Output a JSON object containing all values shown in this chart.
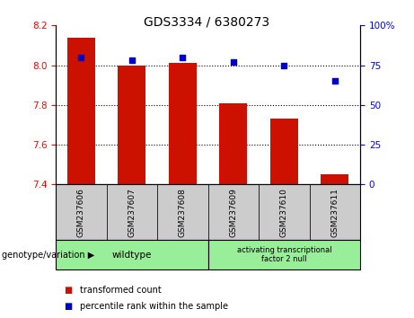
{
  "title": "GDS3334 / 6380273",
  "samples": [
    "GSM237606",
    "GSM237607",
    "GSM237608",
    "GSM237609",
    "GSM237610",
    "GSM237611"
  ],
  "transformed_counts": [
    8.14,
    8.0,
    8.01,
    7.81,
    7.73,
    7.45
  ],
  "percentile_ranks": [
    80,
    78,
    80,
    77,
    75,
    65
  ],
  "bar_bottom": 7.4,
  "ylim_left": [
    7.4,
    8.2
  ],
  "ylim_right": [
    0,
    100
  ],
  "yticks_left": [
    7.4,
    7.6,
    7.8,
    8.0,
    8.2
  ],
  "yticks_right": [
    0,
    25,
    50,
    75,
    100
  ],
  "ytick_labels_right": [
    "0",
    "25",
    "50",
    "75",
    "100%"
  ],
  "bar_color": "#cc1100",
  "square_color": "#0000cc",
  "bg_plot": "#ffffff",
  "bg_xtick": "#cccccc",
  "green_color": "#99ee99",
  "wildtype_range": [
    0,
    2
  ],
  "atf_range": [
    3,
    5
  ],
  "wildtype_label": "wildtype",
  "atf_label": "activating transcriptional\nfactor 2 null",
  "genotype_label": "genotype/variation",
  "legend_red_label": "transformed count",
  "legend_blue_label": "percentile rank within the sample",
  "title_fontsize": 10,
  "tick_fontsize": 7.5,
  "label_fontsize": 7,
  "bar_width": 0.55
}
